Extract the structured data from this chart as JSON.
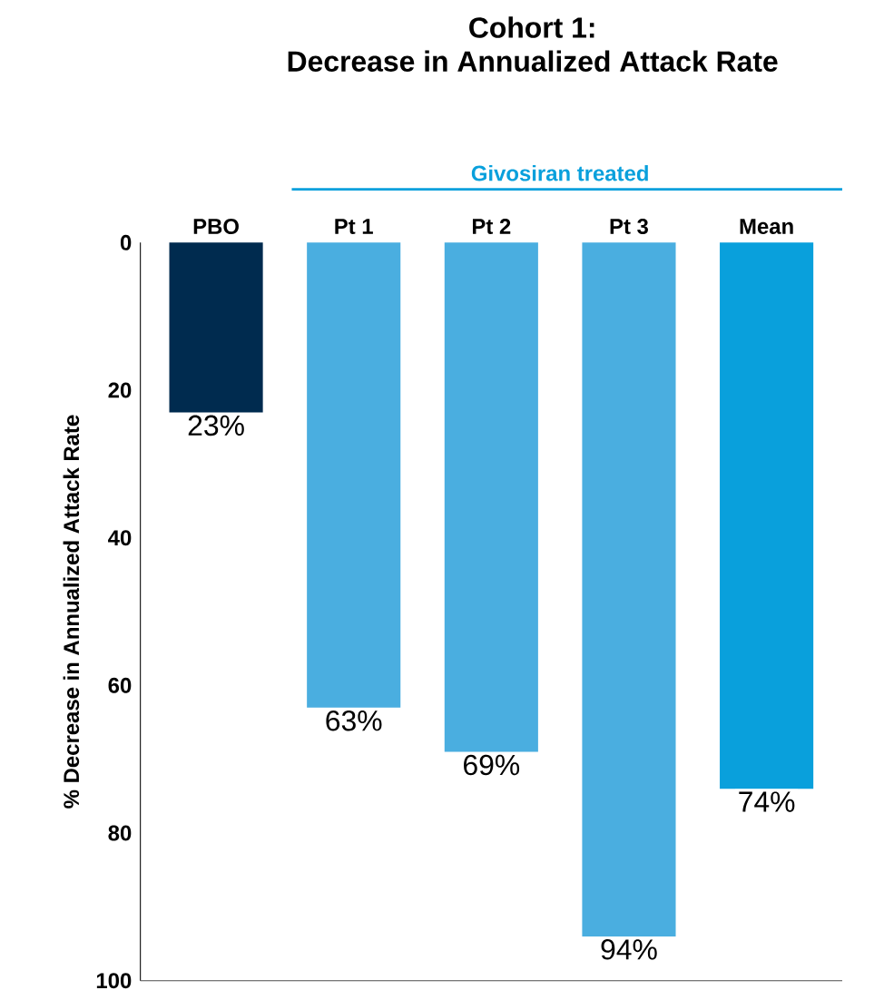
{
  "chart_data": {
    "type": "bar",
    "title": "Cohort 1:",
    "subtitle": "Decrease in Annualized Attack Rate",
    "ylabel": "% Decrease in Annualized Attack Rate",
    "categories": [
      "PBO",
      "Pt 1",
      "Pt 2",
      "Pt 3",
      "Mean"
    ],
    "values": [
      23,
      63,
      69,
      94,
      74
    ],
    "colors": [
      "#002b4f",
      "#4aaee0",
      "#4aaee0",
      "#4aaee0",
      "#09a0dc"
    ],
    "value_labels": [
      "23%",
      "63%",
      "69%",
      "94%",
      "74%"
    ],
    "annotations": [
      "Givosiran treated"
    ],
    "ylim": [
      100,
      0
    ],
    "yticks": [
      0,
      20,
      40,
      60,
      80,
      100
    ],
    "grid": false
  }
}
